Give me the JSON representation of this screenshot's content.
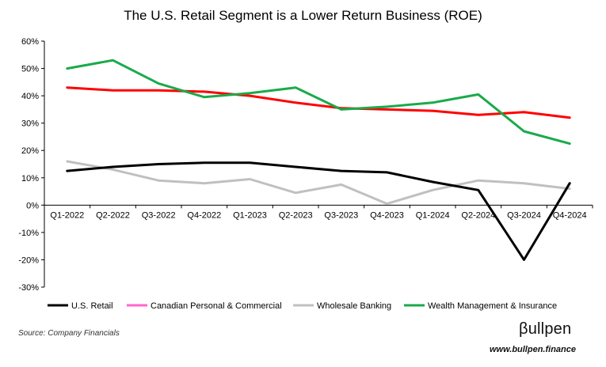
{
  "chart_data": {
    "type": "line",
    "title": "The U.S. Retail Segment is a Lower Return Business (ROE)",
    "categories": [
      "Q1-2022",
      "Q2-2022",
      "Q3-2022",
      "Q4-2022",
      "Q1-2023",
      "Q2-2023",
      "Q3-2023",
      "Q4-2023",
      "Q1-2024",
      "Q2-2024",
      "Q3-2024",
      "Q4-2024"
    ],
    "ylim": [
      -30,
      60
    ],
    "y_ticks": [
      -30,
      -20,
      -10,
      0,
      10,
      20,
      30,
      40,
      50,
      60
    ],
    "y_tick_labels": [
      "-30%",
      "-20%",
      "-10%",
      "0%",
      "10%",
      "20%",
      "30%",
      "40%",
      "50%",
      "60%"
    ],
    "y_unit": "%",
    "grid": false,
    "legend_position": "bottom",
    "series": [
      {
        "name": "U.S. Retail",
        "color": "#000000",
        "values": [
          12.5,
          14,
          15,
          15.5,
          15.5,
          14,
          12.5,
          12,
          8.5,
          5.5,
          -20,
          8
        ]
      },
      {
        "name": "Canadian Personal & Commercial",
        "color": "#ff0000",
        "values": [
          43,
          42,
          42,
          41.5,
          40,
          37.5,
          35.5,
          35,
          34.5,
          33,
          34,
          32
        ]
      },
      {
        "name": "Wholesale Banking",
        "color": "#c0c0c0",
        "values": [
          16,
          13,
          9,
          8,
          9.5,
          4.5,
          7.5,
          0.5,
          5.5,
          9,
          8,
          6
        ]
      },
      {
        "name": "Wealth Management & Insurance",
        "color": "#1aaa4a",
        "values": [
          50,
          53,
          44.5,
          39.5,
          41,
          43,
          35,
          36,
          37.5,
          40.5,
          27,
          22.5
        ]
      }
    ],
    "legend_marker_colors": {
      "Canadian Personal & Commercial": "#ff66cc"
    }
  },
  "footer": {
    "source": "Source: Company Financials",
    "brand": "βullpen",
    "url": "www.bullpen.finance"
  }
}
